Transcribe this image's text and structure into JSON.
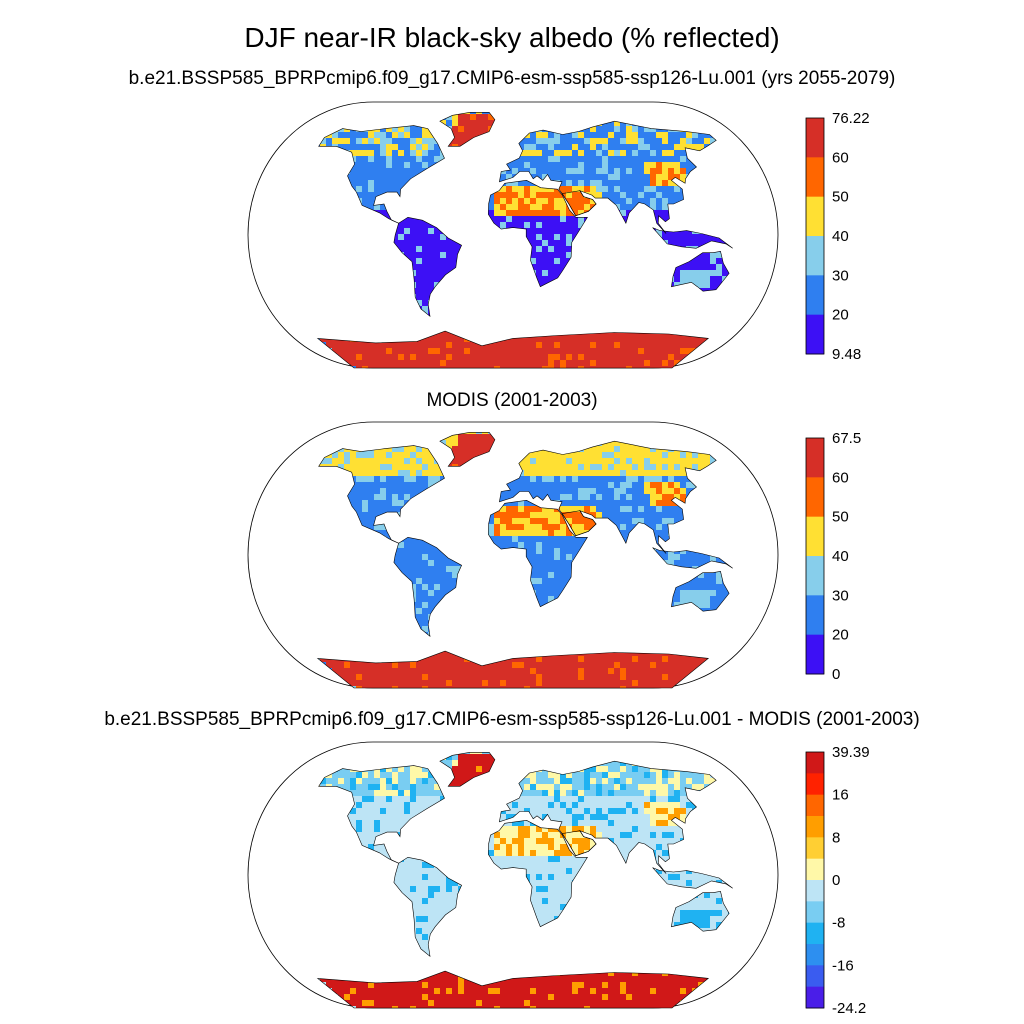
{
  "title": "DJF near-IR black-sky albedo (% reflected)",
  "panels": [
    {
      "title": "b.e21.BSSP585_BPRPcmip6.f09_g17.CMIP6-esm-ssp585-ssp126-Lu.001 (yrs 2055-2079)",
      "colorbar": {
        "labels": [
          "76.22",
          "60",
          "50",
          "40",
          "30",
          "20",
          "9.48"
        ],
        "colors": [
          "#d62f27",
          "#ff6600",
          "#ffe033",
          "#87ceeb",
          "#2f7ff0",
          "#3d10f5"
        ]
      },
      "land_colors": {
        "polar": "#d62f27",
        "boreal": "#2f7ff0",
        "temperate": "#2f7ff0",
        "desert": "#ffe033",
        "tropics": "#3d10f5",
        "accent": "#87ceeb",
        "hot": "#ff6600"
      }
    },
    {
      "title": "MODIS (2001-2003)",
      "colorbar": {
        "labels": [
          "67.5",
          "60",
          "50",
          "40",
          "30",
          "20",
          "0"
        ],
        "colors": [
          "#d62f27",
          "#ff6600",
          "#ffe033",
          "#87ceeb",
          "#2f7ff0",
          "#3d10f5"
        ]
      },
      "land_colors": {
        "polar": "#d62f27",
        "boreal": "#ffe033",
        "temperate": "#2f7ff0",
        "desert": "#ffe033",
        "tropics": "#2f7ff0",
        "accent": "#87ceeb",
        "hot": "#ff6600"
      }
    },
    {
      "title": "b.e21.BSSP585_BPRPcmip6.f09_g17.CMIP6-esm-ssp585-ssp126-Lu.001 - MODIS (2001-2003)",
      "colorbar": {
        "labels": [
          "39.39",
          "",
          "16",
          "",
          "8",
          "",
          "0",
          "",
          "-8",
          "",
          "-16",
          "",
          "-24.2"
        ],
        "colors": [
          "#d01818",
          "#ff2200",
          "#ff6600",
          "#ff9e00",
          "#ffcf33",
          "#fff8a8",
          "#bde4f5",
          "#79cdf2",
          "#1fb2f2",
          "#2d8ff0",
          "#3a5cf0",
          "#4a1ee8"
        ]
      },
      "land_colors": {
        "polar": "#d01818",
        "boreal": "#79cdf2",
        "temperate": "#bde4f5",
        "desert": "#fff8a8",
        "tropics": "#bde4f5",
        "accent": "#1fb2f2",
        "hot": "#ff9e00"
      }
    }
  ]
}
